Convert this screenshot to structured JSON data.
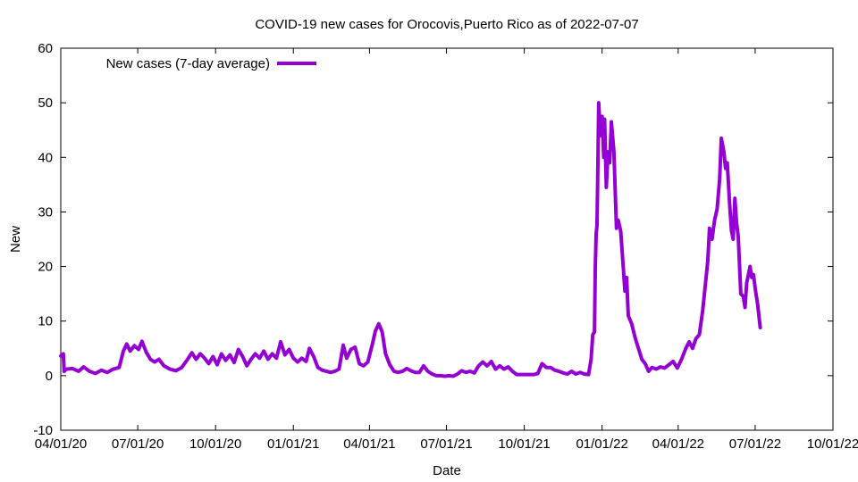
{
  "chart_data": {
    "type": "line",
    "title": "COVID-19 new cases for Orocovis,Puerto Rico as of 2022-07-07",
    "xlabel": "Date",
    "ylabel": "New",
    "xlim": [
      "2020-04-01",
      "2022-10-01"
    ],
    "ylim": [
      -10,
      60
    ],
    "x_ticks": [
      "04/01/20",
      "07/01/20",
      "10/01/20",
      "01/01/21",
      "04/01/21",
      "07/01/21",
      "10/01/21",
      "01/01/22",
      "04/01/22",
      "07/01/22",
      "10/01/22"
    ],
    "y_ticks": [
      "-10",
      "0",
      "10",
      "20",
      "30",
      "40",
      "50",
      "60"
    ],
    "grid": false,
    "legend": {
      "position": "top-left"
    },
    "series": [
      {
        "name": "New cases (7-day average)",
        "color": "#9400d3",
        "points": [
          [
            "2020-04-01",
            3.6
          ],
          [
            "2020-04-04",
            4.0
          ],
          [
            "2020-04-05",
            0.8
          ],
          [
            "2020-04-08",
            1.2
          ],
          [
            "2020-04-15",
            1.3
          ],
          [
            "2020-04-22",
            0.8
          ],
          [
            "2020-04-28",
            1.6
          ],
          [
            "2020-05-05",
            0.8
          ],
          [
            "2020-05-12",
            0.4
          ],
          [
            "2020-05-19",
            1.0
          ],
          [
            "2020-05-26",
            0.6
          ],
          [
            "2020-06-02",
            1.2
          ],
          [
            "2020-06-09",
            1.5
          ],
          [
            "2020-06-14",
            4.5
          ],
          [
            "2020-06-18",
            5.8
          ],
          [
            "2020-06-22",
            4.5
          ],
          [
            "2020-06-27",
            5.5
          ],
          [
            "2020-07-02",
            4.8
          ],
          [
            "2020-07-06",
            6.3
          ],
          [
            "2020-07-11",
            4.3
          ],
          [
            "2020-07-16",
            3.0
          ],
          [
            "2020-07-21",
            2.5
          ],
          [
            "2020-07-26",
            3.0
          ],
          [
            "2020-08-01",
            1.8
          ],
          [
            "2020-08-08",
            1.2
          ],
          [
            "2020-08-15",
            0.9
          ],
          [
            "2020-08-22",
            1.5
          ],
          [
            "2020-08-29",
            3.0
          ],
          [
            "2020-09-03",
            4.2
          ],
          [
            "2020-09-08",
            3.0
          ],
          [
            "2020-09-13",
            4.0
          ],
          [
            "2020-09-18",
            3.2
          ],
          [
            "2020-09-23",
            2.2
          ],
          [
            "2020-09-28",
            3.5
          ],
          [
            "2020-10-03",
            2.0
          ],
          [
            "2020-10-08",
            4.0
          ],
          [
            "2020-10-13",
            2.8
          ],
          [
            "2020-10-18",
            3.8
          ],
          [
            "2020-10-23",
            2.4
          ],
          [
            "2020-10-28",
            4.8
          ],
          [
            "2020-11-02",
            3.5
          ],
          [
            "2020-11-07",
            1.8
          ],
          [
            "2020-11-12",
            3.0
          ],
          [
            "2020-11-17",
            4.0
          ],
          [
            "2020-11-22",
            3.2
          ],
          [
            "2020-11-27",
            4.5
          ],
          [
            "2020-12-02",
            3.0
          ],
          [
            "2020-12-07",
            4.0
          ],
          [
            "2020-12-12",
            3.2
          ],
          [
            "2020-12-17",
            6.2
          ],
          [
            "2020-12-22",
            3.8
          ],
          [
            "2020-12-27",
            4.8
          ],
          [
            "2021-01-01",
            3.2
          ],
          [
            "2021-01-06",
            2.5
          ],
          [
            "2021-01-11",
            3.2
          ],
          [
            "2021-01-16",
            2.6
          ],
          [
            "2021-01-20",
            5.0
          ],
          [
            "2021-01-25",
            3.5
          ],
          [
            "2021-01-30",
            1.5
          ],
          [
            "2021-02-04",
            1.0
          ],
          [
            "2021-02-09",
            0.8
          ],
          [
            "2021-02-14",
            0.6
          ],
          [
            "2021-02-19",
            0.8
          ],
          [
            "2021-02-24",
            1.2
          ],
          [
            "2021-03-01",
            5.6
          ],
          [
            "2021-03-05",
            3.2
          ],
          [
            "2021-03-10",
            4.8
          ],
          [
            "2021-03-15",
            5.2
          ],
          [
            "2021-03-20",
            2.2
          ],
          [
            "2021-03-25",
            1.8
          ],
          [
            "2021-03-30",
            2.5
          ],
          [
            "2021-04-04",
            5.5
          ],
          [
            "2021-04-08",
            8.2
          ],
          [
            "2021-04-12",
            9.5
          ],
          [
            "2021-04-16",
            8.0
          ],
          [
            "2021-04-20",
            4.0
          ],
          [
            "2021-04-25",
            2.0
          ],
          [
            "2021-04-30",
            0.8
          ],
          [
            "2021-05-05",
            0.6
          ],
          [
            "2021-05-10",
            0.8
          ],
          [
            "2021-05-15",
            1.3
          ],
          [
            "2021-05-20",
            0.9
          ],
          [
            "2021-05-25",
            0.6
          ],
          [
            "2021-05-30",
            0.6
          ],
          [
            "2021-06-04",
            1.8
          ],
          [
            "2021-06-09",
            0.8
          ],
          [
            "2021-06-14",
            0.3
          ],
          [
            "2021-06-19",
            0.0
          ],
          [
            "2021-06-24",
            0.0
          ],
          [
            "2021-06-29",
            -0.1
          ],
          [
            "2021-07-04",
            0.0
          ],
          [
            "2021-07-09",
            -0.1
          ],
          [
            "2021-07-14",
            0.3
          ],
          [
            "2021-07-19",
            0.9
          ],
          [
            "2021-07-24",
            0.6
          ],
          [
            "2021-07-29",
            0.8
          ],
          [
            "2021-08-03",
            0.5
          ],
          [
            "2021-08-08",
            1.8
          ],
          [
            "2021-08-13",
            2.5
          ],
          [
            "2021-08-18",
            1.8
          ],
          [
            "2021-08-23",
            2.6
          ],
          [
            "2021-08-28",
            1.2
          ],
          [
            "2021-09-02",
            1.8
          ],
          [
            "2021-09-07",
            1.2
          ],
          [
            "2021-09-12",
            1.6
          ],
          [
            "2021-09-17",
            0.8
          ],
          [
            "2021-09-22",
            0.2
          ],
          [
            "2021-09-27",
            0.2
          ],
          [
            "2021-10-02",
            0.2
          ],
          [
            "2021-10-07",
            0.2
          ],
          [
            "2021-10-12",
            0.2
          ],
          [
            "2021-10-17",
            0.4
          ],
          [
            "2021-10-22",
            2.2
          ],
          [
            "2021-10-27",
            1.5
          ],
          [
            "2021-11-01",
            1.5
          ],
          [
            "2021-11-06",
            1.0
          ],
          [
            "2021-11-11",
            0.8
          ],
          [
            "2021-11-16",
            0.5
          ],
          [
            "2021-11-21",
            0.3
          ],
          [
            "2021-11-26",
            0.8
          ],
          [
            "2021-12-01",
            0.3
          ],
          [
            "2021-12-06",
            0.6
          ],
          [
            "2021-12-11",
            0.3
          ],
          [
            "2021-12-16",
            0.2
          ],
          [
            "2021-12-19",
            3.0
          ],
          [
            "2021-12-21",
            7.5
          ],
          [
            "2021-12-23",
            8.0
          ],
          [
            "2021-12-24",
            20.0
          ],
          [
            "2021-12-25",
            26.0
          ],
          [
            "2021-12-26",
            27.5
          ],
          [
            "2021-12-27",
            38.0
          ],
          [
            "2021-12-28",
            50.0
          ],
          [
            "2021-12-30",
            44.0
          ],
          [
            "2022-01-01",
            47.5
          ],
          [
            "2022-01-03",
            40.0
          ],
          [
            "2022-01-04",
            47.0
          ],
          [
            "2022-01-06",
            34.5
          ],
          [
            "2022-01-08",
            41.0
          ],
          [
            "2022-01-10",
            39.0
          ],
          [
            "2022-01-12",
            46.5
          ],
          [
            "2022-01-15",
            41.0
          ],
          [
            "2022-01-18",
            27.0
          ],
          [
            "2022-01-20",
            28.5
          ],
          [
            "2022-01-23",
            26.5
          ],
          [
            "2022-01-26",
            20.0
          ],
          [
            "2022-01-28",
            15.5
          ],
          [
            "2022-01-30",
            18.0
          ],
          [
            "2022-02-01",
            11.0
          ],
          [
            "2022-02-05",
            9.5
          ],
          [
            "2022-02-09",
            7.0
          ],
          [
            "2022-02-13",
            5.0
          ],
          [
            "2022-02-17",
            3.0
          ],
          [
            "2022-02-21",
            2.2
          ],
          [
            "2022-02-25",
            0.8
          ],
          [
            "2022-03-01",
            1.5
          ],
          [
            "2022-03-06",
            1.2
          ],
          [
            "2022-03-11",
            1.6
          ],
          [
            "2022-03-16",
            1.4
          ],
          [
            "2022-03-21",
            2.0
          ],
          [
            "2022-03-26",
            2.6
          ],
          [
            "2022-03-31",
            1.4
          ],
          [
            "2022-04-05",
            3.0
          ],
          [
            "2022-04-10",
            5.0
          ],
          [
            "2022-04-14",
            6.2
          ],
          [
            "2022-04-18",
            5.0
          ],
          [
            "2022-04-22",
            6.8
          ],
          [
            "2022-04-26",
            7.5
          ],
          [
            "2022-04-30",
            12.0
          ],
          [
            "2022-05-03",
            16.5
          ],
          [
            "2022-05-06",
            21.0
          ],
          [
            "2022-05-08",
            27.0
          ],
          [
            "2022-05-11",
            25.0
          ],
          [
            "2022-05-14",
            28.5
          ],
          [
            "2022-05-17",
            30.5
          ],
          [
            "2022-05-20",
            36.0
          ],
          [
            "2022-05-22",
            43.5
          ],
          [
            "2022-05-25",
            41.0
          ],
          [
            "2022-05-27",
            38.0
          ],
          [
            "2022-05-29",
            39.0
          ],
          [
            "2022-06-01",
            31.0
          ],
          [
            "2022-06-03",
            26.5
          ],
          [
            "2022-06-05",
            25.0
          ],
          [
            "2022-06-07",
            32.5
          ],
          [
            "2022-06-09",
            28.0
          ],
          [
            "2022-06-11",
            25.5
          ],
          [
            "2022-06-14",
            15.0
          ],
          [
            "2022-06-17",
            14.5
          ],
          [
            "2022-06-19",
            12.5
          ],
          [
            "2022-06-21",
            17.0
          ],
          [
            "2022-06-23",
            18.5
          ],
          [
            "2022-06-25",
            20.0
          ],
          [
            "2022-06-27",
            18.0
          ],
          [
            "2022-06-29",
            18.5
          ],
          [
            "2022-07-01",
            16.0
          ],
          [
            "2022-07-04",
            13.0
          ],
          [
            "2022-07-07",
            8.8
          ]
        ]
      }
    ]
  }
}
